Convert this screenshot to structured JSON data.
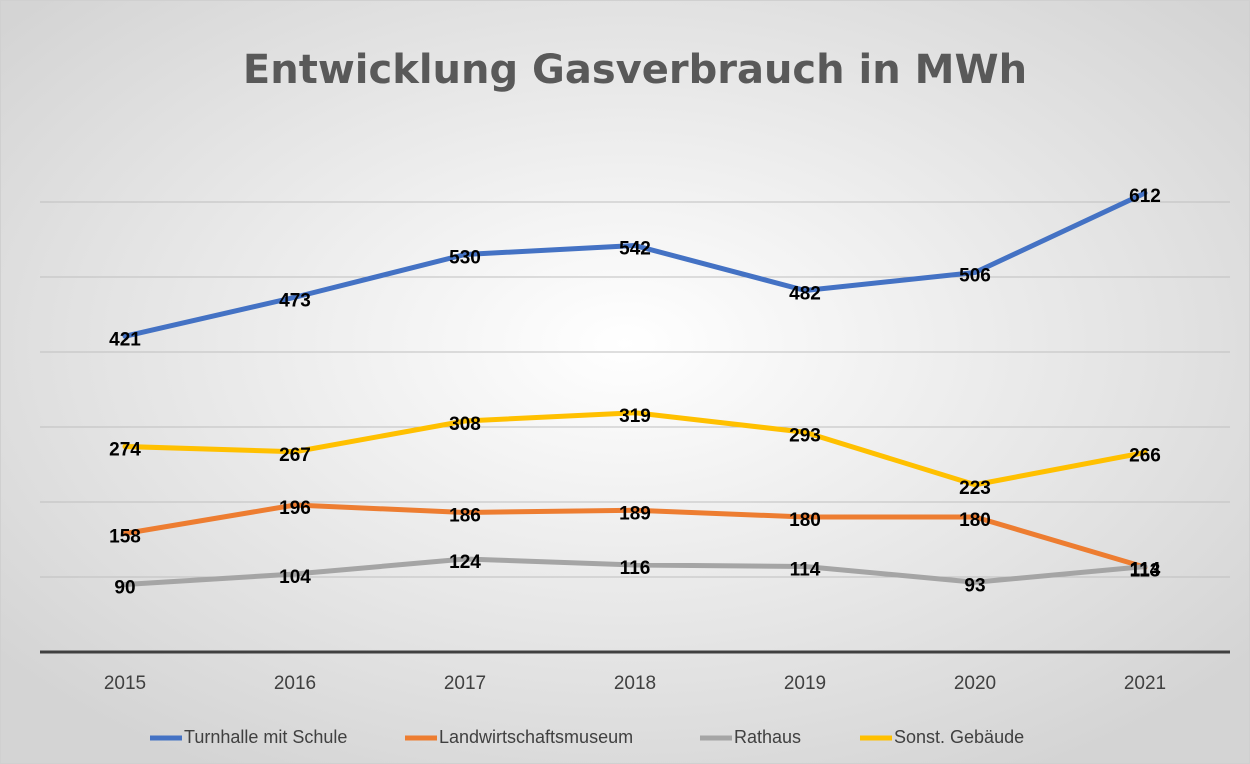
{
  "chart_data": {
    "type": "line",
    "title": "Entwicklung Gasverbrauch in MWh",
    "categories": [
      "2015",
      "2016",
      "2017",
      "2018",
      "2019",
      "2020",
      "2021"
    ],
    "series": [
      {
        "name": "Turnhalle mit Schule",
        "color": "#4472c4",
        "values": [
          421,
          473,
          530,
          542,
          482,
          506,
          612
        ]
      },
      {
        "name": "Landwirtschaftsmuseum",
        "color": "#ed7d31",
        "values": [
          158,
          196,
          186,
          189,
          180,
          180,
          113
        ]
      },
      {
        "name": "Rathaus",
        "color": "#a5a5a5",
        "values": [
          90,
          104,
          124,
          116,
          114,
          93,
          114
        ]
      },
      {
        "name": "Sonst. Gebäude",
        "color": "#ffc000",
        "values": [
          274,
          267,
          308,
          319,
          293,
          223,
          266
        ]
      }
    ],
    "ylim": [
      0,
      700
    ],
    "yticks": [
      0,
      100,
      200,
      300,
      400,
      500,
      600
    ],
    "grid": true,
    "legend": "bottom"
  }
}
